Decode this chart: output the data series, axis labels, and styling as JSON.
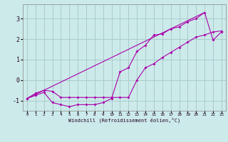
{
  "xlabel": "Windchill (Refroidissement éolien,°C)",
  "bg_color": "#cceaea",
  "grid_color": "#aacccc",
  "line_color": "#aa00aa",
  "xlim": [
    -0.5,
    23.5
  ],
  "ylim": [
    -1.5,
    3.7
  ],
  "yticks": [
    -1,
    0,
    1,
    2,
    3
  ],
  "xticks": [
    0,
    1,
    2,
    3,
    4,
    5,
    6,
    7,
    8,
    9,
    10,
    11,
    12,
    13,
    14,
    15,
    16,
    17,
    18,
    19,
    20,
    21,
    22,
    23
  ],
  "series1_x": [
    0,
    1,
    2,
    3,
    4,
    5,
    6,
    7,
    8,
    9,
    10,
    11,
    12,
    13,
    14,
    15,
    16,
    17,
    18,
    19,
    20,
    21,
    22,
    23
  ],
  "series1_y": [
    -0.9,
    -0.75,
    -0.6,
    -1.1,
    -1.2,
    -1.3,
    -1.2,
    -1.2,
    -1.2,
    -1.1,
    -0.9,
    0.4,
    0.6,
    1.4,
    1.7,
    2.2,
    2.25,
    2.5,
    2.6,
    2.85,
    3.0,
    3.3,
    1.95,
    2.35
  ],
  "series2_x": [
    0,
    1,
    2,
    3,
    4,
    5,
    6,
    7,
    8,
    9,
    10,
    11,
    12,
    13,
    14,
    15,
    16,
    17,
    18,
    19,
    20,
    21,
    22,
    23
  ],
  "series2_y": [
    -0.9,
    -0.65,
    -0.5,
    -0.55,
    -0.85,
    -0.85,
    -0.85,
    -0.85,
    -0.85,
    -0.85,
    -0.85,
    -0.85,
    -0.85,
    0.0,
    0.6,
    0.8,
    1.1,
    1.35,
    1.6,
    1.85,
    2.1,
    2.2,
    2.35,
    2.4
  ],
  "series3_x": [
    0,
    21
  ],
  "series3_y": [
    -0.9,
    3.3
  ]
}
